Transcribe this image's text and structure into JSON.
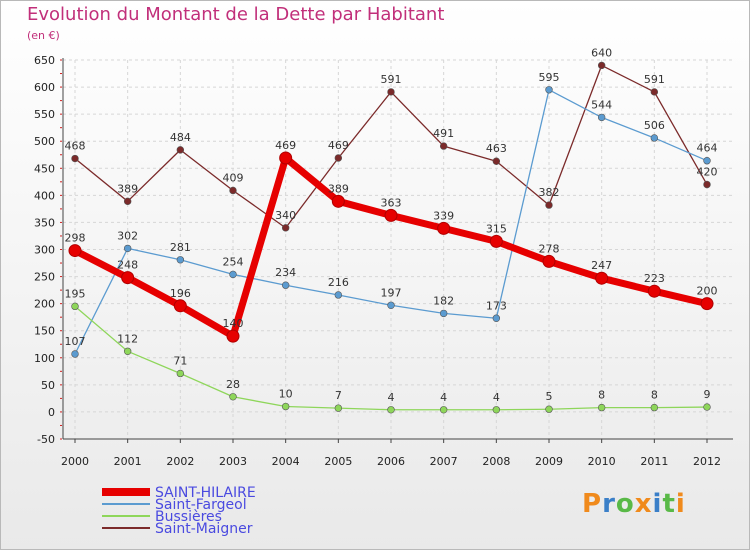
{
  "chart_data": {
    "type": "line",
    "title": "Evolution du Montant de la Dette par Habitant",
    "ylabel": "(en €)",
    "xlabel": "",
    "categories": [
      "2000",
      "2001",
      "2002",
      "2003",
      "2004",
      "2005",
      "2006",
      "2007",
      "2008",
      "2009",
      "2010",
      "2011",
      "2012"
    ],
    "ylim": [
      -50,
      650
    ],
    "yticks": [
      -50,
      0,
      50,
      100,
      150,
      200,
      250,
      300,
      350,
      400,
      450,
      500,
      550,
      600,
      650
    ],
    "grid": true,
    "legend_position": "bottom-left",
    "series": [
      {
        "name": "Saint-Maigner",
        "color": "#7b2a2a",
        "values": [
          468,
          389,
          484,
          409,
          340,
          469,
          591,
          491,
          463,
          382,
          640,
          591,
          420
        ]
      },
      {
        "name": "Saint-Fargeol",
        "color": "#5b9bd0",
        "values": [
          107,
          302,
          281,
          254,
          234,
          216,
          197,
          182,
          173,
          595,
          544,
          506,
          464
        ]
      },
      {
        "name": "Bussières",
        "color": "#8ed65a",
        "values": [
          195,
          112,
          71,
          28,
          10,
          7,
          4,
          4,
          4,
          5,
          8,
          8,
          9
        ]
      },
      {
        "name": "SAINT-HILAIRE",
        "color": "#e60000",
        "values": [
          298,
          248,
          196,
          140,
          469,
          389,
          363,
          339,
          315,
          278,
          247,
          223,
          200
        ]
      }
    ],
    "legend_order": [
      "SAINT-HILAIRE",
      "Saint-Fargeol",
      "Bussières",
      "Saint-Maigner"
    ]
  },
  "logo": {
    "text": "Proxiti",
    "colors": [
      "#f08a1c",
      "#3a7fc8",
      "#59b947",
      "#f08a1c",
      "#3a7fc8",
      "#59b947",
      "#f08a1c"
    ]
  }
}
